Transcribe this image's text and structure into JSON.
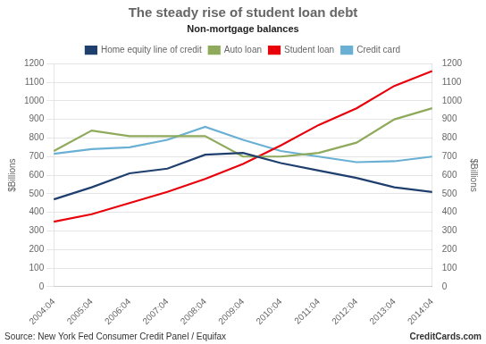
{
  "chart_data": {
    "type": "line",
    "title": "The steady rise of student loan debt",
    "subtitle": "Non-mortgage balances",
    "ylabel": "$Billions",
    "y2label": "$Billions",
    "annotations": [
      "Source: New York Fed Consumer Credit Panel / Equifax",
      "CreditCards.com"
    ],
    "categories": [
      "2004:04",
      "2005:04",
      "2006:04",
      "2007:04",
      "2008:04",
      "2009:04",
      "2010:04",
      "2011:04",
      "2012:04",
      "2013:04",
      "2014:04"
    ],
    "series": [
      {
        "name": "Home equity line of credit",
        "color": "#1f3f6e",
        "values": [
          470,
          535,
          610,
          635,
          710,
          720,
          665,
          625,
          585,
          535,
          510
        ]
      },
      {
        "name": "Auto loan",
        "color": "#8faa5b",
        "values": [
          730,
          840,
          810,
          810,
          810,
          700,
          700,
          720,
          775,
          900,
          960
        ]
      },
      {
        "name": "Student loan",
        "color": "#e8000a",
        "values": [
          350,
          390,
          450,
          510,
          580,
          660,
          760,
          870,
          960,
          1080,
          1160
        ]
      },
      {
        "name": "Credit card",
        "color": "#6ab0d4",
        "values": [
          715,
          740,
          750,
          790,
          860,
          790,
          730,
          700,
          670,
          675,
          700
        ]
      }
    ],
    "ylim": [
      0,
      1200
    ],
    "yticks": [
      0,
      100,
      200,
      300,
      400,
      500,
      600,
      700,
      800,
      900,
      1000,
      1100,
      1200
    ],
    "y2lim": [
      0,
      1200
    ],
    "y2ticks": [
      0,
      100,
      200,
      300,
      400,
      500,
      600,
      700,
      800,
      900,
      1000,
      1100,
      1200
    ],
    "grid": true,
    "legend": "top"
  }
}
